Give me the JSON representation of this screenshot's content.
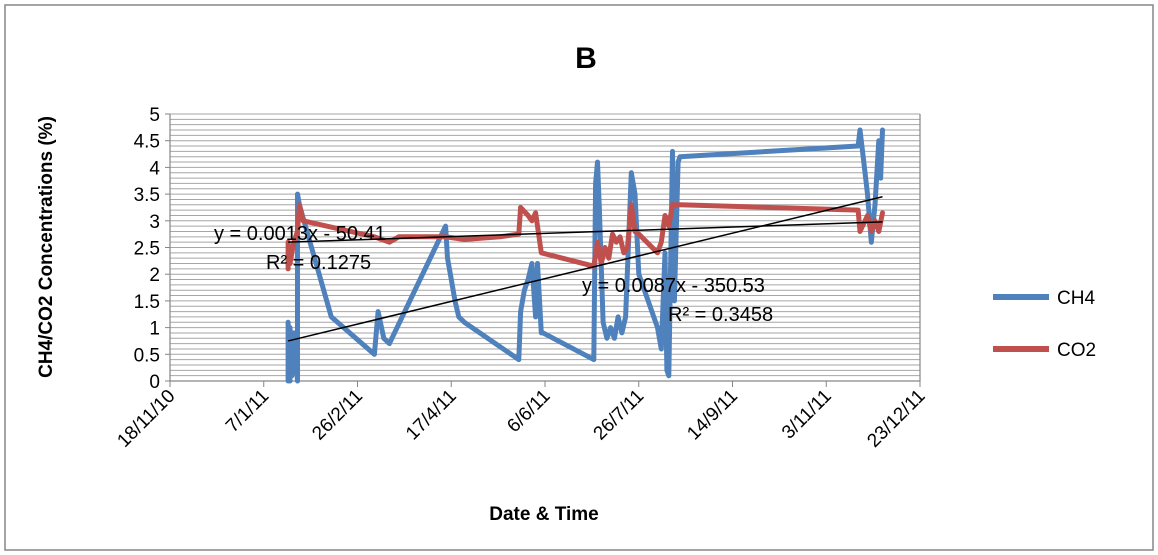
{
  "chart_data": {
    "type": "line",
    "title": "B",
    "xlabel": "Date & Time",
    "ylabel": "CH4/CO2 Concentrations (%)",
    "ylim": [
      0,
      5
    ],
    "yticks": [
      "0",
      "0.5",
      "1",
      "1.5",
      "2",
      "2.5",
      "3",
      "3.5",
      "4",
      "4.5",
      "5"
    ],
    "xlim": [
      "2010-11-18",
      "2011-12-23"
    ],
    "xticks": [
      "18/11/10",
      "7/1/11",
      "26/2/11",
      "17/4/11",
      "6/6/11",
      "26/7/11",
      "14/9/11",
      "3/11/11",
      "23/12/11"
    ],
    "grid": true,
    "legend_position": "right",
    "series": [
      {
        "name": "CH4",
        "color": "#4F81BD",
        "points": [
          [
            "2011-01-20",
            0.0
          ],
          [
            "2011-01-20",
            1.1
          ],
          [
            "2011-01-21",
            0.0
          ],
          [
            "2011-01-21",
            1.0
          ],
          [
            "2011-01-22",
            0.1
          ],
          [
            "2011-01-23",
            0.9
          ],
          [
            "2011-01-25",
            0.0
          ],
          [
            "2011-01-25",
            3.5
          ],
          [
            "2011-01-26",
            3.3
          ],
          [
            "2011-02-12",
            1.2
          ],
          [
            "2011-03-07",
            0.5
          ],
          [
            "2011-03-09",
            1.3
          ],
          [
            "2011-03-12",
            0.8
          ],
          [
            "2011-03-15",
            0.7
          ],
          [
            "2011-04-14",
            2.9
          ],
          [
            "2011-04-15",
            2.3
          ],
          [
            "2011-04-17",
            1.9
          ],
          [
            "2011-04-19",
            1.5
          ],
          [
            "2011-04-21",
            1.2
          ],
          [
            "2011-04-24",
            1.1
          ],
          [
            "2011-05-23",
            0.4
          ],
          [
            "2011-05-24",
            1.3
          ],
          [
            "2011-05-26",
            1.7
          ],
          [
            "2011-05-28",
            1.9
          ],
          [
            "2011-05-30",
            2.2
          ],
          [
            "2011-06-01",
            1.2
          ],
          [
            "2011-06-02",
            2.2
          ],
          [
            "2011-06-04",
            0.9
          ],
          [
            "2011-06-05",
            0.9
          ],
          [
            "2011-07-02",
            0.4
          ],
          [
            "2011-07-03",
            3.7
          ],
          [
            "2011-07-04",
            4.1
          ],
          [
            "2011-07-05",
            3.2
          ],
          [
            "2011-07-07",
            1.1
          ],
          [
            "2011-07-09",
            0.8
          ],
          [
            "2011-07-11",
            1.0
          ],
          [
            "2011-07-13",
            0.8
          ],
          [
            "2011-07-15",
            1.2
          ],
          [
            "2011-07-17",
            0.9
          ],
          [
            "2011-07-19",
            1.2
          ],
          [
            "2011-07-22",
            3.9
          ],
          [
            "2011-07-24",
            3.5
          ],
          [
            "2011-07-26",
            2.0
          ],
          [
            "2011-08-05",
            1.0
          ],
          [
            "2011-08-07",
            0.6
          ],
          [
            "2011-08-09",
            2.4
          ],
          [
            "2011-08-10",
            0.2
          ],
          [
            "2011-08-11",
            0.1
          ],
          [
            "2011-08-13",
            4.3
          ],
          [
            "2011-08-14",
            1.5
          ],
          [
            "2011-08-16",
            4.1
          ],
          [
            "2011-08-17",
            4.2
          ],
          [
            "2011-11-20",
            4.4
          ],
          [
            "2011-11-21",
            4.7
          ],
          [
            "2011-11-23",
            4.1
          ],
          [
            "2011-11-25",
            3.5
          ],
          [
            "2011-11-27",
            2.6
          ],
          [
            "2011-11-29",
            3.3
          ],
          [
            "2011-12-01",
            4.5
          ],
          [
            "2011-12-02",
            3.8
          ],
          [
            "2011-12-03",
            4.7
          ]
        ]
      },
      {
        "name": "CO2",
        "color": "#C0504D",
        "points": [
          [
            "2011-01-20",
            2.1
          ],
          [
            "2011-01-20",
            2.6
          ],
          [
            "2011-01-21",
            2.2
          ],
          [
            "2011-01-23",
            2.6
          ],
          [
            "2011-01-25",
            2.8
          ],
          [
            "2011-01-26",
            3.3
          ],
          [
            "2011-01-28",
            3.0
          ],
          [
            "2011-03-07",
            2.7
          ],
          [
            "2011-03-15",
            2.6
          ],
          [
            "2011-03-20",
            2.7
          ],
          [
            "2011-04-14",
            2.7
          ],
          [
            "2011-04-24",
            2.65
          ],
          [
            "2011-05-13",
            2.7
          ],
          [
            "2011-05-23",
            2.75
          ],
          [
            "2011-05-24",
            3.25
          ],
          [
            "2011-05-28",
            3.1
          ],
          [
            "2011-05-30",
            3.0
          ],
          [
            "2011-06-01",
            3.15
          ],
          [
            "2011-06-04",
            2.4
          ],
          [
            "2011-07-02",
            2.15
          ],
          [
            "2011-07-04",
            2.6
          ],
          [
            "2011-07-06",
            2.2
          ],
          [
            "2011-07-08",
            2.5
          ],
          [
            "2011-07-10",
            2.3
          ],
          [
            "2011-07-12",
            2.75
          ],
          [
            "2011-07-14",
            2.6
          ],
          [
            "2011-07-16",
            2.7
          ],
          [
            "2011-07-18",
            2.4
          ],
          [
            "2011-07-20",
            2.5
          ],
          [
            "2011-07-22",
            3.3
          ],
          [
            "2011-07-24",
            2.8
          ],
          [
            "2011-07-26",
            2.75
          ],
          [
            "2011-08-05",
            2.4
          ],
          [
            "2011-08-07",
            2.6
          ],
          [
            "2011-08-09",
            3.1
          ],
          [
            "2011-08-11",
            2.9
          ],
          [
            "2011-08-13",
            3.3
          ],
          [
            "2011-08-17",
            3.3
          ],
          [
            "2011-11-20",
            3.2
          ],
          [
            "2011-11-21",
            2.8
          ],
          [
            "2011-11-25",
            3.1
          ],
          [
            "2011-11-27",
            2.8
          ],
          [
            "2011-11-29",
            3.0
          ],
          [
            "2011-12-01",
            2.8
          ],
          [
            "2011-12-03",
            3.15
          ]
        ]
      }
    ],
    "trendlines": [
      {
        "equation": "y = 0.0013x - 50.41",
        "r2": "R² = 0.1275",
        "x": [
          "2011-01-20",
          "2011-12-03"
        ],
        "y": [
          2.6,
          2.98
        ]
      },
      {
        "equation": "y = 0.0087x - 350.53",
        "r2": "R² = 0.3458",
        "x": [
          "2011-01-20",
          "2011-12-03"
        ],
        "y": [
          0.75,
          3.45
        ]
      }
    ]
  },
  "colors": {
    "grid": "#A6A6A6",
    "frame": "#868686",
    "trend": "#000000"
  }
}
